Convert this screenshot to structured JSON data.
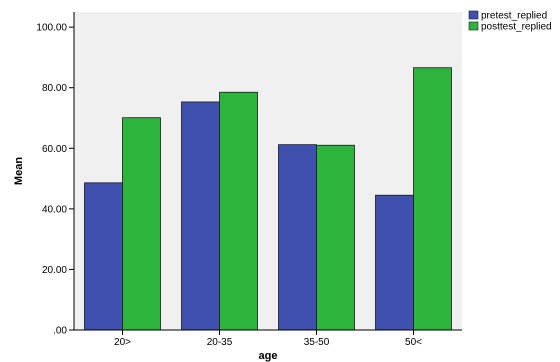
{
  "chart_data": {
    "type": "bar",
    "categories": [
      "20>",
      "20-35",
      "35-50",
      "50<"
    ],
    "series": [
      {
        "name": "pretest_replied",
        "values": [
          48.6,
          75.3,
          61.2,
          44.5
        ],
        "color": "#3f51b0"
      },
      {
        "name": "posttest_replied",
        "values": [
          70.1,
          78.5,
          61.0,
          86.6
        ],
        "color": "#2db43c"
      }
    ],
    "xlabel": "age",
    "ylabel": "Mean",
    "ylim": [
      0,
      105
    ],
    "yticks": [
      0,
      20,
      40,
      60,
      80,
      100
    ],
    "ytick_labels": [
      ".00",
      "20.00",
      "40.00",
      "60.00",
      "80.00",
      "100.00"
    ],
    "grid": false,
    "legend_position": "top-right",
    "plot_background": "#f0f0f0"
  }
}
